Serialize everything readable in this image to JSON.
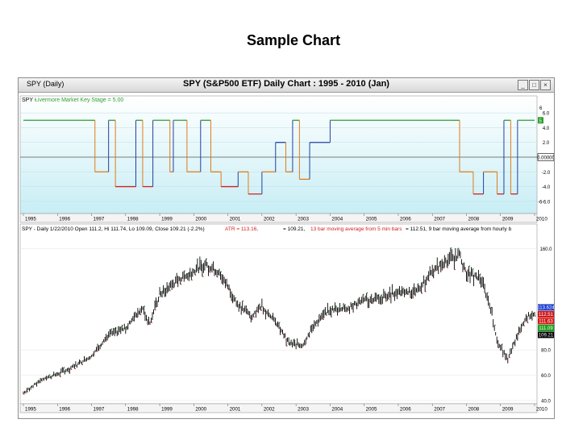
{
  "slide": {
    "title": "Sample Chart"
  },
  "window": {
    "ticker_tab": "SPY (Daily)",
    "title": "SPY (S&P500 ETF) Daily Chart : 1995 - 2010 (Jan)",
    "controls": [
      "_",
      "□",
      "×"
    ]
  },
  "colors": {
    "indicator_line": "#2e9e2e",
    "down_seg": "#e07a1a",
    "down_deep": "#d02020",
    "blue_seg": "#2040a0",
    "price_bar": "#000000",
    "price_up_dot": "#1e8a1e",
    "price_dn_dot": "#d02020",
    "panel_top_bg_top": "#ffffff",
    "panel_top_bg_bottom": "#c8eef5"
  },
  "top_panel": {
    "legend_prefix": "SPY -",
    "legend_name": "Livermore Market Key Stage = 5.00",
    "right_axis": [
      "6.0",
      "4.0",
      "2.0",
      "0.00000",
      "-2.0",
      "-4.0",
      "-6.0"
    ],
    "right_markers": {
      "top": "6",
      "stage": "5",
      "bottom": "-6"
    }
  },
  "x_axis": {
    "labels": [
      "1995",
      "1996",
      "1997",
      "1998",
      "1999",
      "2000",
      "2001",
      "2002",
      "2003",
      "2004",
      "2005",
      "2006",
      "2007",
      "2008",
      "2009",
      "2010"
    ]
  },
  "bottom_panel": {
    "legend_a": "SPY - Daily 1/22/2010 Open 111.2, Hi 111.74, Lo 109.09, Close 109.21 (-2.2%)",
    "legend_atr": "ATR = 113.16,",
    "legend_b": "= 109.21,",
    "legend_c": "13 bar moving average from 5 min bars",
    "legend_d": "= 112.51, 9 bar moving average from hourly b",
    "right_axis": [
      "160.0",
      "109.210",
      "80.0",
      "60.0",
      "40.0"
    ],
    "price_tags": [
      {
        "value": "113.624",
        "bg": "#1a3ccc"
      },
      {
        "value": "112.51",
        "bg": "#d01818"
      },
      {
        "value": "111.63",
        "bg": "#d01818"
      },
      {
        "value": "111.09",
        "bg": "#18a018"
      },
      {
        "value": "109.21",
        "bg": "#000000"
      }
    ]
  },
  "chart_data": [
    {
      "type": "line",
      "title": "Livermore Market Key Stage",
      "x": [
        1995.0,
        1997.0,
        1997.1,
        1997.5,
        1997.7,
        1998.3,
        1998.5,
        1998.8,
        1999.3,
        1999.4,
        1999.8,
        2000.2,
        2000.5,
        2000.8,
        2001.3,
        2001.6,
        2002.0,
        2002.4,
        2002.7,
        2002.9,
        2003.1,
        2003.4,
        2004.0,
        2007.6,
        2007.8,
        2008.2,
        2008.5,
        2008.9,
        2009.1,
        2009.3,
        2009.5,
        2010.0
      ],
      "y": [
        5,
        5,
        -2,
        5,
        -4,
        5,
        -4,
        5,
        -2,
        5,
        -2,
        5,
        -2,
        -4,
        -2,
        -5,
        -2,
        2,
        -2,
        5,
        -3,
        2,
        5,
        5,
        -2,
        -5,
        -2,
        -5,
        5,
        -5,
        5,
        5
      ],
      "ylim": [
        -7,
        7
      ]
    },
    {
      "type": "line",
      "title": "SPY Daily Close",
      "x": [
        1995.0,
        1995.5,
        1996.0,
        1996.5,
        1997.0,
        1997.5,
        1997.8,
        1998.0,
        1998.5,
        1998.7,
        1999.0,
        1999.5,
        2000.0,
        2000.3,
        2000.7,
        2001.0,
        2001.3,
        2001.7,
        2002.0,
        2002.5,
        2002.8,
        2003.2,
        2003.5,
        2004.0,
        2004.5,
        2005.0,
        2005.5,
        2006.0,
        2006.5,
        2007.0,
        2007.5,
        2007.8,
        2008.0,
        2008.4,
        2008.7,
        2008.9,
        2009.2,
        2009.5,
        2009.8,
        2010.0
      ],
      "y": [
        46,
        56,
        61,
        67,
        75,
        92,
        95,
        97,
        114,
        100,
        124,
        134,
        142,
        148,
        142,
        130,
        116,
        106,
        115,
        98,
        85,
        84,
        99,
        112,
        113,
        119,
        121,
        127,
        125,
        142,
        152,
        155,
        140,
        137,
        115,
        88,
        72,
        92,
        107,
        109.21
      ],
      "ylim": [
        40,
        170
      ]
    }
  ]
}
